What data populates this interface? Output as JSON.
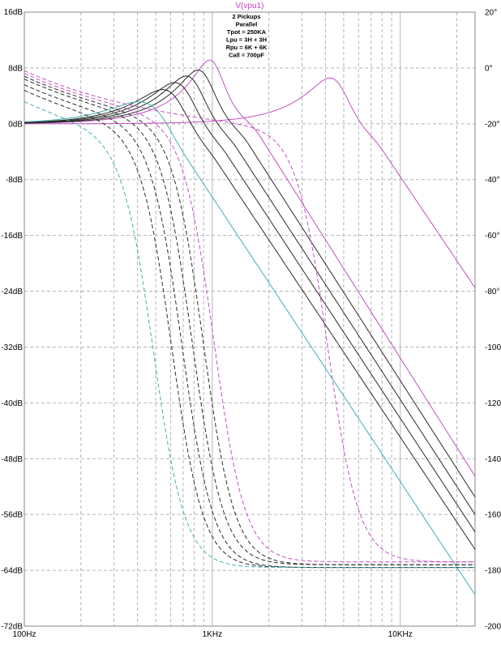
{
  "colors": {
    "black": "#2a2a2a",
    "magenta": "#c050c0",
    "cyan": "#40b0b0",
    "grid": "#b4b4b4",
    "title": "#c040c0"
  },
  "chart_data": {
    "type": "line",
    "title": "V(vpu1)",
    "annotation": [
      "2 Pickups",
      "Parallel",
      "Tpot = 250KA",
      "Lpu = 3H + 3H",
      "Rpu = 6K + 6K",
      "Call = 700pF"
    ],
    "x_scale": "log",
    "xlim": [
      100,
      25000
    ],
    "x_ticks": [
      {
        "value": 100,
        "label": "100Hz"
      },
      {
        "value": 1000,
        "label": "1KHz"
      },
      {
        "value": 10000,
        "label": "10KHz"
      }
    ],
    "y_left": {
      "unit": "dB",
      "ylim": [
        -72,
        16
      ],
      "ticks": [
        {
          "value": 16,
          "label": "16dB"
        },
        {
          "value": 8,
          "label": "8dB"
        },
        {
          "value": 0,
          "label": "0dB"
        },
        {
          "value": -8,
          "label": "-8dB"
        },
        {
          "value": -16,
          "label": "-16dB"
        },
        {
          "value": -24,
          "label": "-24dB"
        },
        {
          "value": -32,
          "label": "-32dB"
        },
        {
          "value": -40,
          "label": "-40dB"
        },
        {
          "value": -48,
          "label": "-48dB"
        },
        {
          "value": -56,
          "label": "-56dB"
        },
        {
          "value": -64,
          "label": "-64dB"
        },
        {
          "value": -72,
          "label": "-72dB"
        }
      ]
    },
    "y_right": {
      "unit": "degrees",
      "ylim": [
        -200,
        20
      ],
      "ticks": [
        {
          "value": 20,
          "label": "20°"
        },
        {
          "value": 0,
          "label": "0°"
        },
        {
          "value": -20,
          "label": "-20°"
        },
        {
          "value": -40,
          "label": "-40°"
        },
        {
          "value": -60,
          "label": "-60°"
        },
        {
          "value": -80,
          "label": "-80°"
        },
        {
          "value": -100,
          "label": "-100°"
        },
        {
          "value": -120,
          "label": "-120°"
        },
        {
          "value": -140,
          "label": "-140°"
        },
        {
          "value": -160,
          "label": "-160°"
        },
        {
          "value": -180,
          "label": "-180°"
        },
        {
          "value": -200,
          "label": "-200°"
        }
      ]
    },
    "grid": true,
    "series": [
      {
        "kind": "magnitude",
        "color": "magenta",
        "style": "solid",
        "peak_freq": 4500,
        "peak_db": 6.3,
        "x_end": 25000,
        "y_end": -23.5
      },
      {
        "kind": "magnitude",
        "color": "magenta",
        "style": "solid",
        "peak_freq": 1000,
        "peak_db": 9.0,
        "x_end": 25000,
        "y_end": -50.5
      },
      {
        "kind": "magnitude",
        "color": "black",
        "style": "solid",
        "peak_freq": 880,
        "peak_db": 7.5,
        "x_end": 25000,
        "y_end": -53.5
      },
      {
        "kind": "magnitude",
        "color": "black",
        "style": "solid",
        "peak_freq": 770,
        "peak_db": 6.6,
        "x_end": 25000,
        "y_end": -56.0
      },
      {
        "kind": "magnitude",
        "color": "black",
        "style": "solid",
        "peak_freq": 680,
        "peak_db": 5.6,
        "x_end": 25000,
        "y_end": -58.5
      },
      {
        "kind": "magnitude",
        "color": "black",
        "style": "solid",
        "peak_freq": 600,
        "peak_db": 4.5,
        "x_end": 25000,
        "y_end": -61.0
      },
      {
        "kind": "magnitude",
        "color": "cyan",
        "style": "solid",
        "peak_freq": 480,
        "peak_db": 2.5,
        "x_end": 25000,
        "y_end": -67.5
      },
      {
        "kind": "phase",
        "color": "magenta",
        "style": "dashed",
        "start_deg": -1,
        "corner_freq": 4000,
        "x_end": 25000,
        "end_deg": -177
      },
      {
        "kind": "phase",
        "color": "magenta",
        "style": "dashed",
        "start_deg": -2,
        "corner_freq": 1000,
        "x_end": 25000,
        "end_deg": -177
      },
      {
        "kind": "phase",
        "color": "black",
        "style": "dashed",
        "start_deg": -3,
        "corner_freq": 880,
        "x_end": 25000,
        "end_deg": -178
      },
      {
        "kind": "phase",
        "color": "black",
        "style": "dashed",
        "start_deg": -4,
        "corner_freq": 770,
        "x_end": 25000,
        "end_deg": -178
      },
      {
        "kind": "phase",
        "color": "black",
        "style": "dashed",
        "start_deg": -6,
        "corner_freq": 680,
        "x_end": 25000,
        "end_deg": -179
      },
      {
        "kind": "phase",
        "color": "black",
        "style": "dashed",
        "start_deg": -8,
        "corner_freq": 600,
        "x_end": 25000,
        "end_deg": -179
      },
      {
        "kind": "phase",
        "color": "cyan",
        "style": "dashed",
        "start_deg": -12,
        "corner_freq": 480,
        "x_end": 25000,
        "end_deg": -179
      }
    ]
  }
}
